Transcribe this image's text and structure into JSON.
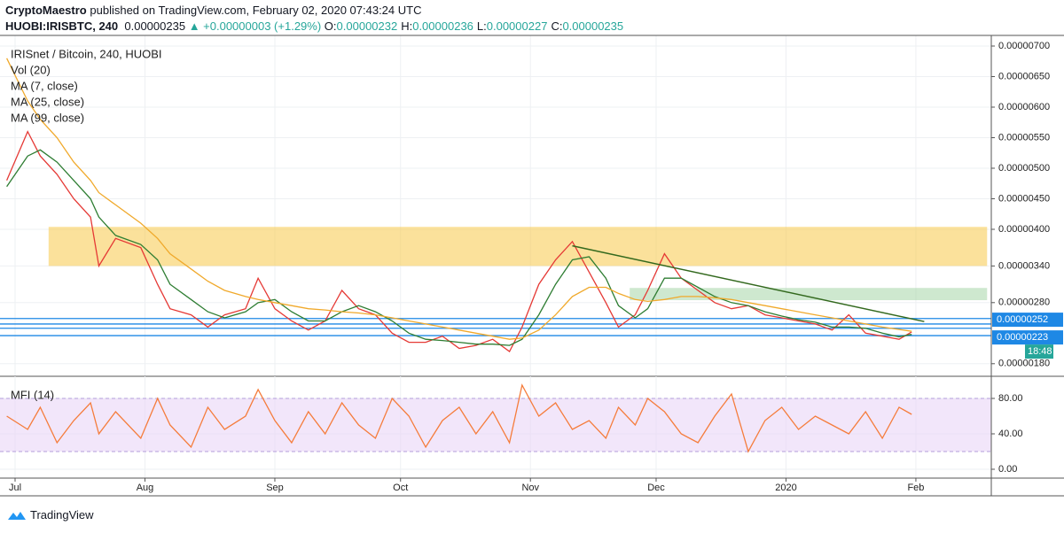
{
  "header": {
    "publisher": "CryptoMaestro",
    "published": "published on TradingView.com, February 02, 2020 07:43:24 UTC",
    "symbol": "HUOBI:IRISBTC, 240",
    "last": "0.00000235",
    "change": "▲ +0.00000003 (+1.29%)",
    "ohlc": [
      {
        "key": "O:",
        "value": "0.00000232"
      },
      {
        "key": "H:",
        "value": "0.00000236"
      },
      {
        "key": "L:",
        "value": "0.00000227"
      },
      {
        "key": "C:",
        "value": "0.00000235"
      }
    ]
  },
  "chart_data": [
    {
      "type": "line",
      "title": "IRISnet / Bitcoin, 240, HUOBI",
      "indicator": "Vol (20)",
      "x": [
        -2,
        3,
        6,
        10,
        14,
        18,
        20,
        24,
        30,
        34,
        37,
        42,
        46,
        50,
        55,
        58,
        62,
        66,
        70,
        74,
        78,
        82,
        86,
        90,
        94,
        98,
        102,
        106,
        110,
        114,
        118,
        121,
        125,
        129,
        133,
        137,
        141,
        144,
        148,
        151,
        155,
        159,
        163,
        167,
        171,
        175,
        179,
        183,
        187,
        191,
        195,
        199,
        203,
        207,
        211,
        214
      ],
      "series": [
        {
          "name": "MA (7, close)",
          "color": "#e53935",
          "values": [
            4.8e-06,
            5.6e-06,
            5.2e-06,
            4.9e-06,
            4.5e-06,
            4.2e-06,
            3.4e-06,
            3.85e-06,
            3.7e-06,
            3.1e-06,
            2.7e-06,
            2.6e-06,
            2.4e-06,
            2.6e-06,
            2.7e-06,
            3.2e-06,
            2.7e-06,
            2.5e-06,
            2.35e-06,
            2.5e-06,
            3e-06,
            2.7e-06,
            2.6e-06,
            2.3e-06,
            2.15e-06,
            2.15e-06,
            2.25e-06,
            2.05e-06,
            2.1e-06,
            2.2e-06,
            2e-06,
            2.4e-06,
            3.1e-06,
            3.5e-06,
            3.8e-06,
            3.3e-06,
            2.8e-06,
            2.4e-06,
            2.6e-06,
            3e-06,
            3.6e-06,
            3.2e-06,
            3e-06,
            2.8e-06,
            2.7e-06,
            2.75e-06,
            2.6e-06,
            2.55e-06,
            2.5e-06,
            2.45e-06,
            2.35e-06,
            2.6e-06,
            2.3e-06,
            2.25e-06,
            2.2e-06,
            2.32e-06
          ]
        },
        {
          "name": "MA (25, close)",
          "color": "#2e7d32",
          "values": [
            4.7e-06,
            5.2e-06,
            5.3e-06,
            5.1e-06,
            4.8e-06,
            4.5e-06,
            4.2e-06,
            3.9e-06,
            3.75e-06,
            3.5e-06,
            3.1e-06,
            2.85e-06,
            2.65e-06,
            2.55e-06,
            2.65e-06,
            2.8e-06,
            2.85e-06,
            2.65e-06,
            2.5e-06,
            2.5e-06,
            2.65e-06,
            2.75e-06,
            2.65e-06,
            2.5e-06,
            2.3e-06,
            2.2e-06,
            2.18e-06,
            2.15e-06,
            2.12e-06,
            2.12e-06,
            2.1e-06,
            2.2e-06,
            2.6e-06,
            3.1e-06,
            3.5e-06,
            3.55e-06,
            3.2e-06,
            2.75e-06,
            2.55e-06,
            2.7e-06,
            3.2e-06,
            3.2e-06,
            3.05e-06,
            2.9e-06,
            2.8e-06,
            2.75e-06,
            2.65e-06,
            2.58e-06,
            2.52e-06,
            2.48e-06,
            2.4e-06,
            2.4e-06,
            2.38e-06,
            2.3e-06,
            2.24e-06,
            2.28e-06
          ]
        },
        {
          "name": "MA (99, close)",
          "color": "#f0a92b",
          "values": [
            6.8e-06,
            6.1e-06,
            5.8e-06,
            5.5e-06,
            5.1e-06,
            4.8e-06,
            4.6e-06,
            4.4e-06,
            4.1e-06,
            3.85e-06,
            3.6e-06,
            3.35e-06,
            3.15e-06,
            3e-06,
            2.9e-06,
            2.85e-06,
            2.8e-06,
            2.75e-06,
            2.7e-06,
            2.68e-06,
            2.65e-06,
            2.63e-06,
            2.6e-06,
            2.55e-06,
            2.5e-06,
            2.45e-06,
            2.4e-06,
            2.35e-06,
            2.3e-06,
            2.25e-06,
            2.2e-06,
            2.22e-06,
            2.35e-06,
            2.6e-06,
            2.9e-06,
            3.05e-06,
            3.05e-06,
            2.95e-06,
            2.85e-06,
            2.82e-06,
            2.85e-06,
            2.9e-06,
            2.9e-06,
            2.88e-06,
            2.85e-06,
            2.8e-06,
            2.75e-06,
            2.7e-06,
            2.65e-06,
            2.6e-06,
            2.55e-06,
            2.5e-06,
            2.45e-06,
            2.4e-06,
            2.36e-06,
            2.33e-06
          ]
        }
      ],
      "xlim": [
        -3.6,
        233
      ],
      "ylim": [
        1.594e-06,
        7.174e-06
      ],
      "yticks": [
        {
          "value": 7e-06,
          "label": "0.00000700"
        },
        {
          "value": 6.5e-06,
          "label": "0.00000650"
        },
        {
          "value": 6e-06,
          "label": "0.00000600"
        },
        {
          "value": 5.5e-06,
          "label": "0.00000550"
        },
        {
          "value": 5e-06,
          "label": "0.00000500"
        },
        {
          "value": 4.5e-06,
          "label": "0.00000450"
        },
        {
          "value": 4e-06,
          "label": "0.00000400"
        },
        {
          "value": 3.4e-06,
          "label": "0.00000340"
        },
        {
          "value": 2.8e-06,
          "label": "0.00000280"
        },
        {
          "value": 1.8e-06,
          "label": "0.00000180"
        }
      ],
      "grid": true,
      "zones": [
        {
          "x": [
            8,
            232
          ],
          "y": [
            3.4e-06,
            4.04e-06
          ],
          "color": "#f7c948"
        },
        {
          "x": [
            146.7,
            232
          ],
          "y": [
            2.84e-06,
            3.04e-06
          ],
          "color": "#a5d6a7"
        }
      ],
      "levels": [
        2.54e-06,
        2.45e-06,
        2.38e-06,
        2.26e-06
      ],
      "level_color": "#1e88e5",
      "trendline": {
        "x": [
          133,
          217
        ],
        "y": [
          3.73e-06,
          2.49e-06
        ],
        "color": "#33691e"
      },
      "price_labels": [
        {
          "value": 2.52e-06,
          "label": "0.00000252"
        },
        {
          "value": 2.23e-06,
          "label": "0.00000223"
        }
      ],
      "countdown": "18:48"
    },
    {
      "type": "line",
      "title": "MFI (14)",
      "x": [
        -2,
        3,
        6,
        10,
        14,
        18,
        20,
        24,
        30,
        34,
        37,
        42,
        46,
        50,
        55,
        58,
        62,
        66,
        70,
        74,
        78,
        82,
        86,
        90,
        94,
        98,
        102,
        106,
        110,
        114,
        118,
        121,
        125,
        129,
        133,
        137,
        141,
        144,
        148,
        151,
        155,
        159,
        163,
        167,
        171,
        175,
        179,
        183,
        187,
        191,
        195,
        199,
        203,
        207,
        211,
        214
      ],
      "series": [
        {
          "color": "#f57c3b",
          "values": [
            60,
            45,
            70,
            30,
            55,
            75,
            40,
            65,
            35,
            80,
            50,
            25,
            70,
            45,
            60,
            90,
            55,
            30,
            65,
            40,
            75,
            50,
            35,
            80,
            60,
            25,
            55,
            70,
            40,
            65,
            30,
            95,
            60,
            75,
            45,
            55,
            35,
            70,
            50,
            80,
            65,
            40,
            30,
            60,
            85,
            20,
            55,
            70,
            45,
            60,
            50,
            40,
            65,
            35,
            70,
            62
          ]
        }
      ],
      "xlim": [
        -3.6,
        233
      ],
      "ylim": [
        -10,
        105
      ],
      "yticks": [
        {
          "value": 80,
          "label": "80.00"
        },
        {
          "value": 40,
          "label": "40.00"
        },
        {
          "value": 0,
          "label": "0.00"
        }
      ],
      "band": [
        20,
        80
      ],
      "band_color": "#ead6f7",
      "xticks": [
        {
          "value": 0,
          "label": "Jul"
        },
        {
          "value": 31,
          "label": "Aug"
        },
        {
          "value": 62,
          "label": "Sep"
        },
        {
          "value": 92,
          "label": "Oct"
        },
        {
          "value": 123,
          "label": "Nov"
        },
        {
          "value": 153,
          "label": "Dec"
        },
        {
          "value": 184,
          "label": "2020"
        },
        {
          "value": 215,
          "label": "Feb"
        }
      ],
      "grid": true
    }
  ],
  "footer": {
    "brand": "TradingView"
  }
}
